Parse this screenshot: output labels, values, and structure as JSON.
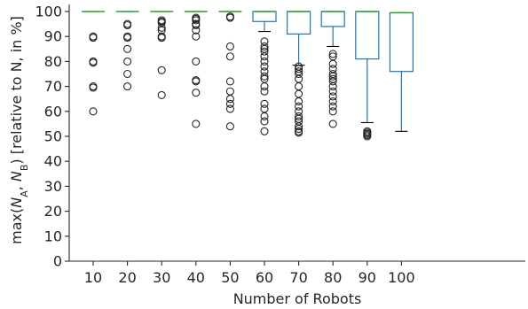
{
  "chart_data": {
    "type": "box",
    "xlabel": "Number of Robots",
    "ylabel_parts": [
      "max(",
      "N",
      "A",
      ", ",
      "N",
      "B",
      ") [relative to N, in %]"
    ],
    "ylim": [
      0,
      100
    ],
    "yticks": [
      0,
      10,
      20,
      30,
      40,
      50,
      60,
      70,
      80,
      90,
      100
    ],
    "categories": [
      "10",
      "20",
      "30",
      "40",
      "50",
      "60",
      "70",
      "80",
      "90",
      "100"
    ],
    "colors": {
      "box": "#1f77b4",
      "median": "#2ca02c",
      "whisker_cap": "#000000",
      "flier": "#262626"
    },
    "boxes": [
      {
        "category": "10",
        "q1": 100,
        "median": 100,
        "q3": 100,
        "whisker_low": 100,
        "whisker_high": 100,
        "fliers": [
          90,
          89.5,
          80,
          79.5,
          70,
          69.5,
          60
        ]
      },
      {
        "category": "20",
        "q1": 100,
        "median": 100,
        "q3": 100,
        "whisker_low": 100,
        "whisker_high": 100,
        "fliers": [
          95,
          94.5,
          90,
          89.5,
          85,
          80,
          75,
          70
        ]
      },
      {
        "category": "30",
        "q1": 100,
        "median": 100,
        "q3": 100,
        "whisker_low": 100,
        "whisker_high": 100,
        "fliers": [
          96.5,
          96,
          95.5,
          93.5,
          92.5,
          90,
          89.5,
          76.5,
          66.5
        ]
      },
      {
        "category": "40",
        "q1": 100,
        "median": 100,
        "q3": 100,
        "whisker_low": 100,
        "whisker_high": 100,
        "fliers": [
          97.5,
          97,
          96.5,
          95,
          94.5,
          92.5,
          90,
          80,
          72.5,
          72,
          67.5,
          55
        ]
      },
      {
        "category": "50",
        "q1": 100,
        "median": 100,
        "q3": 100,
        "whisker_low": 100,
        "whisker_high": 100,
        "fliers": [
          98,
          97.5,
          86,
          82,
          72,
          68,
          65,
          63,
          61,
          54
        ]
      },
      {
        "category": "60",
        "q1": 96,
        "median": 100,
        "q3": 100,
        "whisker_low": 92,
        "whisker_high": 100,
        "fliers": [
          88,
          86,
          85,
          84,
          82,
          80,
          78,
          76,
          74,
          73,
          70,
          68,
          63,
          61,
          58,
          56,
          52
        ]
      },
      {
        "category": "70",
        "q1": 91,
        "median": 100,
        "q3": 100,
        "whisker_low": 78.5,
        "whisker_high": 100,
        "fliers": [
          78,
          77,
          76,
          75,
          73,
          70,
          67,
          64,
          62,
          60,
          58,
          57,
          56,
          54,
          53,
          52,
          51.5
        ]
      },
      {
        "category": "80",
        "q1": 94,
        "median": 100,
        "q3": 100,
        "whisker_low": 86,
        "whisker_high": 100,
        "fliers": [
          83,
          82,
          79,
          77,
          75,
          74,
          73,
          72,
          70,
          68,
          66,
          64,
          62,
          60,
          55
        ]
      },
      {
        "category": "90",
        "q1": 81,
        "median": 100,
        "q3": 100,
        "whisker_low": 55.5,
        "whisker_high": 100,
        "fliers": [
          52,
          51.5,
          51,
          50.5,
          50
        ]
      },
      {
        "category": "100",
        "q1": 76,
        "median": 99.5,
        "q3": 99.5,
        "whisker_low": 52,
        "whisker_high": 99.5,
        "fliers": []
      }
    ]
  }
}
